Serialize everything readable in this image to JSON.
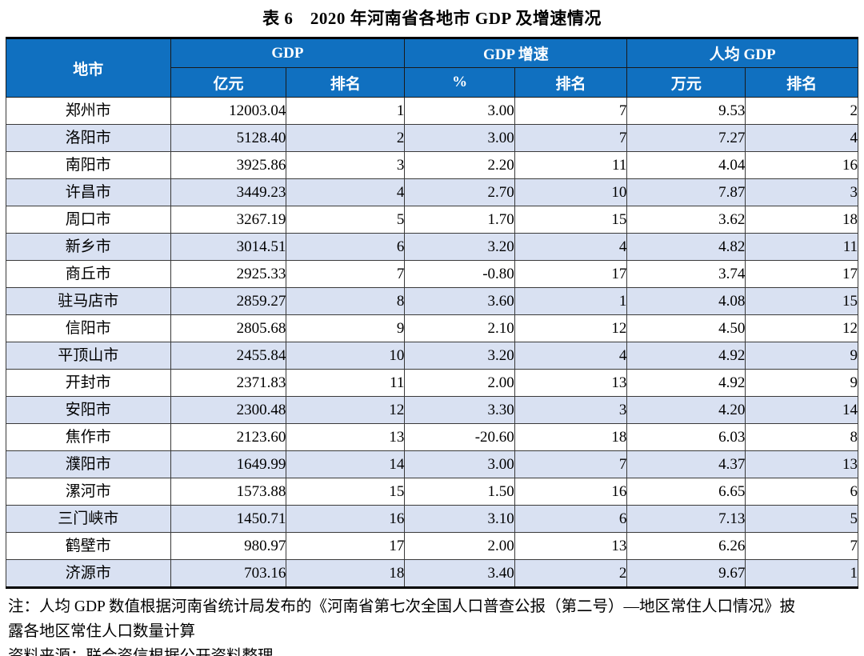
{
  "title": "表 6　2020 年河南省各地市 GDP 及增速情况",
  "colors": {
    "header_bg": "#1070C0",
    "band_bg": "#D9E1F2",
    "grid_line": "#3a3a3a",
    "thick_border": "#000000",
    "header_text": "#ffffff",
    "body_text": "#000000"
  },
  "table": {
    "header": {
      "city": "地市",
      "gdp_group": "GDP",
      "gdp_unit": "亿元",
      "gdp_rank": "排名",
      "growth_group": "GDP 增速",
      "growth_unit": "%",
      "growth_rank": "排名",
      "pc_group": "人均 GDP",
      "pc_unit": "万元",
      "pc_rank": "排名"
    },
    "rows": [
      [
        "郑州市",
        "12003.04",
        "1",
        "3.00",
        "7",
        "9.53",
        "2"
      ],
      [
        "洛阳市",
        "5128.40",
        "2",
        "3.00",
        "7",
        "7.27",
        "4"
      ],
      [
        "南阳市",
        "3925.86",
        "3",
        "2.20",
        "11",
        "4.04",
        "16"
      ],
      [
        "许昌市",
        "3449.23",
        "4",
        "2.70",
        "10",
        "7.87",
        "3"
      ],
      [
        "周口市",
        "3267.19",
        "5",
        "1.70",
        "15",
        "3.62",
        "18"
      ],
      [
        "新乡市",
        "3014.51",
        "6",
        "3.20",
        "4",
        "4.82",
        "11"
      ],
      [
        "商丘市",
        "2925.33",
        "7",
        "-0.80",
        "17",
        "3.74",
        "17"
      ],
      [
        "驻马店市",
        "2859.27",
        "8",
        "3.60",
        "1",
        "4.08",
        "15"
      ],
      [
        "信阳市",
        "2805.68",
        "9",
        "2.10",
        "12",
        "4.50",
        "12"
      ],
      [
        "平顶山市",
        "2455.84",
        "10",
        "3.20",
        "4",
        "4.92",
        "9"
      ],
      [
        "开封市",
        "2371.83",
        "11",
        "2.00",
        "13",
        "4.92",
        "9"
      ],
      [
        "安阳市",
        "2300.48",
        "12",
        "3.30",
        "3",
        "4.20",
        "14"
      ],
      [
        "焦作市",
        "2123.60",
        "13",
        "-20.60",
        "18",
        "6.03",
        "8"
      ],
      [
        "濮阳市",
        "1649.99",
        "14",
        "3.00",
        "7",
        "4.37",
        "13"
      ],
      [
        "漯河市",
        "1573.88",
        "15",
        "1.50",
        "16",
        "6.65",
        "6"
      ],
      [
        "三门峡市",
        "1450.71",
        "16",
        "3.10",
        "6",
        "7.13",
        "5"
      ],
      [
        "鹤壁市",
        "980.97",
        "17",
        "2.00",
        "13",
        "6.26",
        "7"
      ],
      [
        "济源市",
        "703.16",
        "18",
        "3.40",
        "2",
        "9.67",
        "1"
      ]
    ]
  },
  "notes": {
    "line1": "注：人均 GDP 数值根据河南省统计局发布的《河南省第七次全国人口普查公报（第二号）—地区常住人口情况》披",
    "line2": "露各地区常住人口数量计算",
    "source": "资料来源：联合资信根据公开资料整理"
  }
}
